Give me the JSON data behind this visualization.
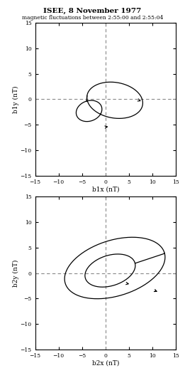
{
  "title_line1": "ISEE, 8 November 1977",
  "title_line2": "magnetic fluctuations between 2:55:00 and 2:55:04",
  "title_fontsize": 7.5,
  "axis_lim": [
    -15,
    15
  ],
  "tick_vals": [
    -15,
    -10,
    -5,
    0,
    5,
    10,
    15
  ],
  "plot1_xlabel": "b1x (nT)",
  "plot1_ylabel": "b1y (nT)",
  "plot2_xlabel": "b2x (nT)",
  "plot2_ylabel": "b2y (nT)",
  "line_color": "#000000",
  "dashed_color": "#888888"
}
